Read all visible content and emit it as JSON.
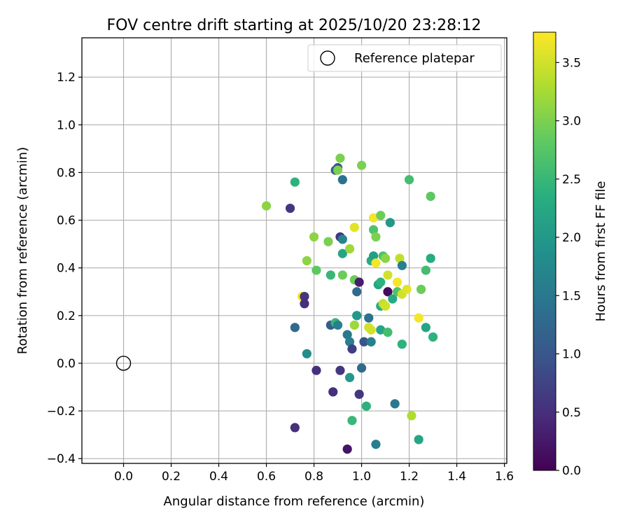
{
  "chart_data": {
    "type": "scatter",
    "title": "FOV centre drift starting at 2025/10/20 23:28:12",
    "xlabel": "Angular distance from reference (arcmin)",
    "ylabel": "Rotation from reference (arcmin)",
    "xlim": [
      -0.175,
      1.61
    ],
    "ylim": [
      -0.42,
      1.365
    ],
    "xticks": [
      0.0,
      0.2,
      0.4,
      0.6,
      0.8,
      1.0,
      1.2,
      1.4,
      1.6
    ],
    "xtick_labels": [
      "0.0",
      "0.2",
      "0.4",
      "0.6",
      "0.8",
      "1.0",
      "1.2",
      "1.4",
      "1.6"
    ],
    "yticks": [
      -0.4,
      -0.2,
      0.0,
      0.2,
      0.4,
      0.6,
      0.8,
      1.0,
      1.2
    ],
    "ytick_labels": [
      "−0.4",
      "−0.2",
      "0.0",
      "0.2",
      "0.4",
      "0.6",
      "0.8",
      "1.0",
      "1.2"
    ],
    "grid": true,
    "legend": {
      "position": "top-right",
      "entries": [
        "Reference platepar"
      ]
    },
    "reference_point": {
      "x": 0.0,
      "y": 0.0,
      "label": "Reference platepar"
    },
    "colorbar": {
      "label": "Hours from first FF file",
      "range": [
        0.0,
        3.76
      ],
      "ticks": [
        0.0,
        0.5,
        1.0,
        1.5,
        2.0,
        2.5,
        3.0,
        3.5
      ],
      "tick_labels": [
        "0.0",
        "0.5",
        "1.0",
        "1.5",
        "2.0",
        "2.5",
        "3.0",
        "3.5"
      ],
      "colormap": "viridis"
    },
    "points": [
      {
        "x": 0.6,
        "y": 0.66,
        "c": 3.1
      },
      {
        "x": 0.7,
        "y": 0.65,
        "c": 0.6
      },
      {
        "x": 0.72,
        "y": 0.76,
        "c": 2.4
      },
      {
        "x": 0.72,
        "y": 0.15,
        "c": 1.3
      },
      {
        "x": 0.72,
        "y": -0.27,
        "c": 0.5
      },
      {
        "x": 0.75,
        "y": 0.28,
        "c": 3.7
      },
      {
        "x": 0.76,
        "y": 0.28,
        "c": 0.6
      },
      {
        "x": 0.76,
        "y": 0.25,
        "c": 0.5
      },
      {
        "x": 0.77,
        "y": 0.43,
        "c": 3.1
      },
      {
        "x": 0.77,
        "y": 0.04,
        "c": 1.8
      },
      {
        "x": 0.8,
        "y": 0.53,
        "c": 3.1
      },
      {
        "x": 0.81,
        "y": 0.39,
        "c": 2.8
      },
      {
        "x": 0.81,
        "y": -0.03,
        "c": 0.5
      },
      {
        "x": 0.86,
        "y": 0.51,
        "c": 3.0
      },
      {
        "x": 0.87,
        "y": 0.37,
        "c": 2.5
      },
      {
        "x": 0.87,
        "y": 0.16,
        "c": 1.1
      },
      {
        "x": 0.88,
        "y": -0.12,
        "c": 0.5
      },
      {
        "x": 0.89,
        "y": 0.81,
        "c": 1.1
      },
      {
        "x": 0.89,
        "y": 0.17,
        "c": 2.5
      },
      {
        "x": 0.9,
        "y": 0.82,
        "c": 0.9
      },
      {
        "x": 0.9,
        "y": 0.81,
        "c": 3.0
      },
      {
        "x": 0.9,
        "y": 0.16,
        "c": 1.6
      },
      {
        "x": 0.91,
        "y": 0.86,
        "c": 3.0
      },
      {
        "x": 0.91,
        "y": 0.53,
        "c": 0.6
      },
      {
        "x": 0.91,
        "y": -0.03,
        "c": 0.6
      },
      {
        "x": 0.92,
        "y": 0.77,
        "c": 1.4
      },
      {
        "x": 0.92,
        "y": 0.52,
        "c": 1.7
      },
      {
        "x": 0.92,
        "y": 0.46,
        "c": 2.2
      },
      {
        "x": 0.92,
        "y": 0.37,
        "c": 2.9
      },
      {
        "x": 0.94,
        "y": -0.36,
        "c": 0.2
      },
      {
        "x": 0.94,
        "y": 0.12,
        "c": 1.5
      },
      {
        "x": 0.95,
        "y": 0.48,
        "c": 3.2
      },
      {
        "x": 0.95,
        "y": 0.09,
        "c": 1.6
      },
      {
        "x": 0.95,
        "y": -0.06,
        "c": 2.0
      },
      {
        "x": 0.96,
        "y": 0.06,
        "c": 0.7
      },
      {
        "x": 0.96,
        "y": -0.24,
        "c": 2.5
      },
      {
        "x": 0.97,
        "y": 0.57,
        "c": 3.6
      },
      {
        "x": 0.97,
        "y": 0.35,
        "c": 2.9
      },
      {
        "x": 0.97,
        "y": 0.16,
        "c": 3.2
      },
      {
        "x": 0.98,
        "y": 0.3,
        "c": 1.3
      },
      {
        "x": 0.98,
        "y": 0.2,
        "c": 1.7
      },
      {
        "x": 0.98,
        "y": 0.2,
        "c": 2.0
      },
      {
        "x": 0.99,
        "y": 0.34,
        "c": 0.3
      },
      {
        "x": 0.99,
        "y": -0.13,
        "c": 0.6
      },
      {
        "x": 1.0,
        "y": 0.83,
        "c": 3.0
      },
      {
        "x": 1.0,
        "y": -0.02,
        "c": 1.3
      },
      {
        "x": 1.01,
        "y": 0.09,
        "c": 1.0
      },
      {
        "x": 1.02,
        "y": -0.18,
        "c": 2.4
      },
      {
        "x": 1.03,
        "y": 0.19,
        "c": 1.4
      },
      {
        "x": 1.03,
        "y": 0.15,
        "c": 3.5
      },
      {
        "x": 1.04,
        "y": 0.43,
        "c": 2.3
      },
      {
        "x": 1.04,
        "y": 0.14,
        "c": 3.5
      },
      {
        "x": 1.04,
        "y": 0.09,
        "c": 1.6
      },
      {
        "x": 1.05,
        "y": 0.61,
        "c": 3.7
      },
      {
        "x": 1.05,
        "y": 0.56,
        "c": 2.7
      },
      {
        "x": 1.05,
        "y": 0.45,
        "c": 2.1
      },
      {
        "x": 1.06,
        "y": 0.53,
        "c": 3.0
      },
      {
        "x": 1.06,
        "y": 0.42,
        "c": 3.7
      },
      {
        "x": 1.06,
        "y": -0.34,
        "c": 1.6
      },
      {
        "x": 1.07,
        "y": 0.33,
        "c": 2.7
      },
      {
        "x": 1.07,
        "y": 0.33,
        "c": 2.2
      },
      {
        "x": 1.08,
        "y": 0.62,
        "c": 2.9
      },
      {
        "x": 1.08,
        "y": 0.34,
        "c": 2.4
      },
      {
        "x": 1.08,
        "y": 0.24,
        "c": 2.3
      },
      {
        "x": 1.08,
        "y": 0.14,
        "c": 2.2
      },
      {
        "x": 1.09,
        "y": 0.45,
        "c": 2.7
      },
      {
        "x": 1.09,
        "y": 0.25,
        "c": 3.4
      },
      {
        "x": 1.1,
        "y": 0.44,
        "c": 3.1
      },
      {
        "x": 1.1,
        "y": 0.24,
        "c": 3.5
      },
      {
        "x": 1.11,
        "y": 0.3,
        "c": 0.1
      },
      {
        "x": 1.11,
        "y": 0.13,
        "c": 2.6
      },
      {
        "x": 1.11,
        "y": 0.37,
        "c": 3.5
      },
      {
        "x": 1.12,
        "y": 0.59,
        "c": 2.0
      },
      {
        "x": 1.13,
        "y": 0.27,
        "c": 2.3
      },
      {
        "x": 1.14,
        "y": -0.17,
        "c": 1.5
      },
      {
        "x": 1.15,
        "y": 0.34,
        "c": 3.7
      },
      {
        "x": 1.15,
        "y": 0.3,
        "c": 2.7
      },
      {
        "x": 1.16,
        "y": 0.44,
        "c": 3.4
      },
      {
        "x": 1.17,
        "y": 0.41,
        "c": 1.6
      },
      {
        "x": 1.17,
        "y": 0.29,
        "c": 3.5
      },
      {
        "x": 1.17,
        "y": 0.08,
        "c": 2.4
      },
      {
        "x": 1.19,
        "y": 0.31,
        "c": 3.6
      },
      {
        "x": 1.2,
        "y": 0.77,
        "c": 2.6
      },
      {
        "x": 1.21,
        "y": -0.22,
        "c": 3.3
      },
      {
        "x": 1.24,
        "y": 0.19,
        "c": 3.7
      },
      {
        "x": 1.24,
        "y": -0.32,
        "c": 2.2
      },
      {
        "x": 1.25,
        "y": 0.31,
        "c": 2.9
      },
      {
        "x": 1.27,
        "y": 0.39,
        "c": 2.6
      },
      {
        "x": 1.27,
        "y": 0.15,
        "c": 2.2
      },
      {
        "x": 1.29,
        "y": 0.7,
        "c": 2.8
      },
      {
        "x": 1.29,
        "y": 0.44,
        "c": 2.3
      },
      {
        "x": 1.3,
        "y": 0.11,
        "c": 2.4
      }
    ]
  }
}
